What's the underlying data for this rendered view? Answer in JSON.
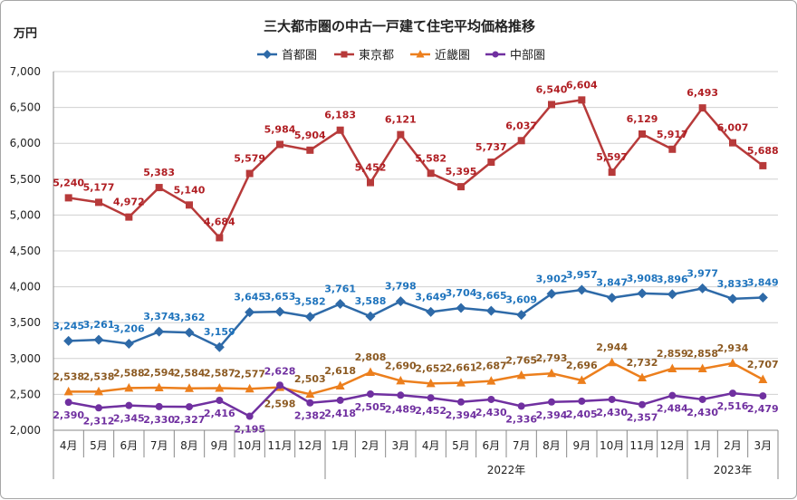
{
  "chart_data": {
    "type": "line",
    "title": "三大都市圏の中古一戸建て住宅平均価格推移",
    "unit_label": "万円",
    "xlabel": "",
    "ylabel": "万円",
    "ylim": [
      2000,
      7000
    ],
    "y_ticks": [
      "2,000",
      "2,500",
      "3,000",
      "3,500",
      "4,000",
      "4,500",
      "5,000",
      "5,500",
      "6,000",
      "6,500",
      "7,000"
    ],
    "y_tick_values": [
      2000,
      2500,
      3000,
      3500,
      4000,
      4500,
      5000,
      5500,
      6000,
      6500,
      7000
    ],
    "grid": true,
    "legend_position": "top-center",
    "categories": [
      "4月",
      "5月",
      "6月",
      "7月",
      "8月",
      "9月",
      "10月",
      "11月",
      "12月",
      "1月",
      "2月",
      "3月",
      "4月",
      "5月",
      "6月",
      "7月",
      "8月",
      "9月",
      "10月",
      "11月",
      "12月",
      "1月",
      "2月",
      "3月"
    ],
    "year_groups": [
      {
        "label": "",
        "start": 0,
        "end": 8
      },
      {
        "label": "2022年",
        "start": 9,
        "end": 20
      },
      {
        "label": "2023年",
        "start": 21,
        "end": 23
      }
    ],
    "series": [
      {
        "name": "首都圏",
        "color": "#2e6aa8",
        "label_color": "#1f74bd",
        "marker": "diamond",
        "values": [
          3245,
          3261,
          3206,
          3374,
          3362,
          3159,
          3645,
          3653,
          3582,
          3761,
          3588,
          3798,
          3649,
          3704,
          3665,
          3609,
          3902,
          3957,
          3847,
          3908,
          3896,
          3977,
          3833,
          3849
        ],
        "labels": [
          "3,245",
          "3,261",
          "3,206",
          "3,374",
          "3,362",
          "3,159",
          "3,645",
          "3,653",
          "3,582",
          "3,761",
          "3,588",
          "3,798",
          "3,649",
          "3,704",
          "3,665",
          "3,609",
          "3,902",
          "3,957",
          "3,847",
          "3,908",
          "3,896",
          "3,977",
          "3,833",
          "3,849"
        ]
      },
      {
        "name": "東京都",
        "color": "#b73a3a",
        "label_color": "#b01e23",
        "marker": "square",
        "values": [
          5240,
          5177,
          4972,
          5383,
          5140,
          4684,
          5579,
          5984,
          5904,
          6183,
          5452,
          6121,
          5582,
          5395,
          5737,
          6037,
          6540,
          6604,
          5597,
          6129,
          5917,
          6493,
          6007,
          5688
        ],
        "labels": [
          "5,240",
          "5,177",
          "4,972",
          "5,383",
          "5,140",
          "4,684",
          "5,579",
          "5,984",
          "5,904",
          "6,183",
          "5,452",
          "6,121",
          "5,582",
          "5,395",
          "5,737",
          "6,037",
          "6,540",
          "6,604",
          "5,597",
          "6,129",
          "5,917",
          "6,493",
          "6,007",
          "5,688"
        ]
      },
      {
        "name": "近畿圏",
        "color": "#ec7f1d",
        "label_color": "#8c5a22",
        "marker": "triangle",
        "values": [
          2538,
          2538,
          2588,
          2594,
          2584,
          2587,
          2577,
          2598,
          2503,
          2618,
          2808,
          2690,
          2652,
          2661,
          2687,
          2765,
          2793,
          2696,
          2944,
          2732,
          2859,
          2858,
          2934,
          2707
        ],
        "labels": [
          "2,538",
          "2,538",
          "2,588",
          "2,594",
          "2,584",
          "2,587",
          "2,577",
          "2,598",
          "2,503",
          "2,618",
          "2,808",
          "2,690",
          "2,652",
          "2,661",
          "2,687",
          "2,765",
          "2,793",
          "2,696",
          "2,944",
          "2,732",
          "2,859",
          "2,858",
          "2,934",
          "2,707"
        ]
      },
      {
        "name": "中部圏",
        "color": "#7030a0",
        "label_color": "#7030a0",
        "marker": "circle",
        "values": [
          2390,
          2312,
          2345,
          2330,
          2327,
          2416,
          2195,
          2628,
          2382,
          2418,
          2505,
          2489,
          2452,
          2394,
          2430,
          2336,
          2394,
          2405,
          2430,
          2357,
          2484,
          2430,
          2516,
          2479
        ],
        "labels": [
          "2,390",
          "2,312",
          "2,345",
          "2,330",
          "2,327",
          "2,416",
          "2,195",
          "2,628",
          "2,382",
          "2,418",
          "2,505",
          "2,489",
          "2,452",
          "2,394",
          "2,430",
          "2,336",
          "2,394",
          "2,405",
          "2,430",
          "2,357",
          "2,484",
          "2,430",
          "2,516",
          "2,479"
        ]
      }
    ]
  }
}
